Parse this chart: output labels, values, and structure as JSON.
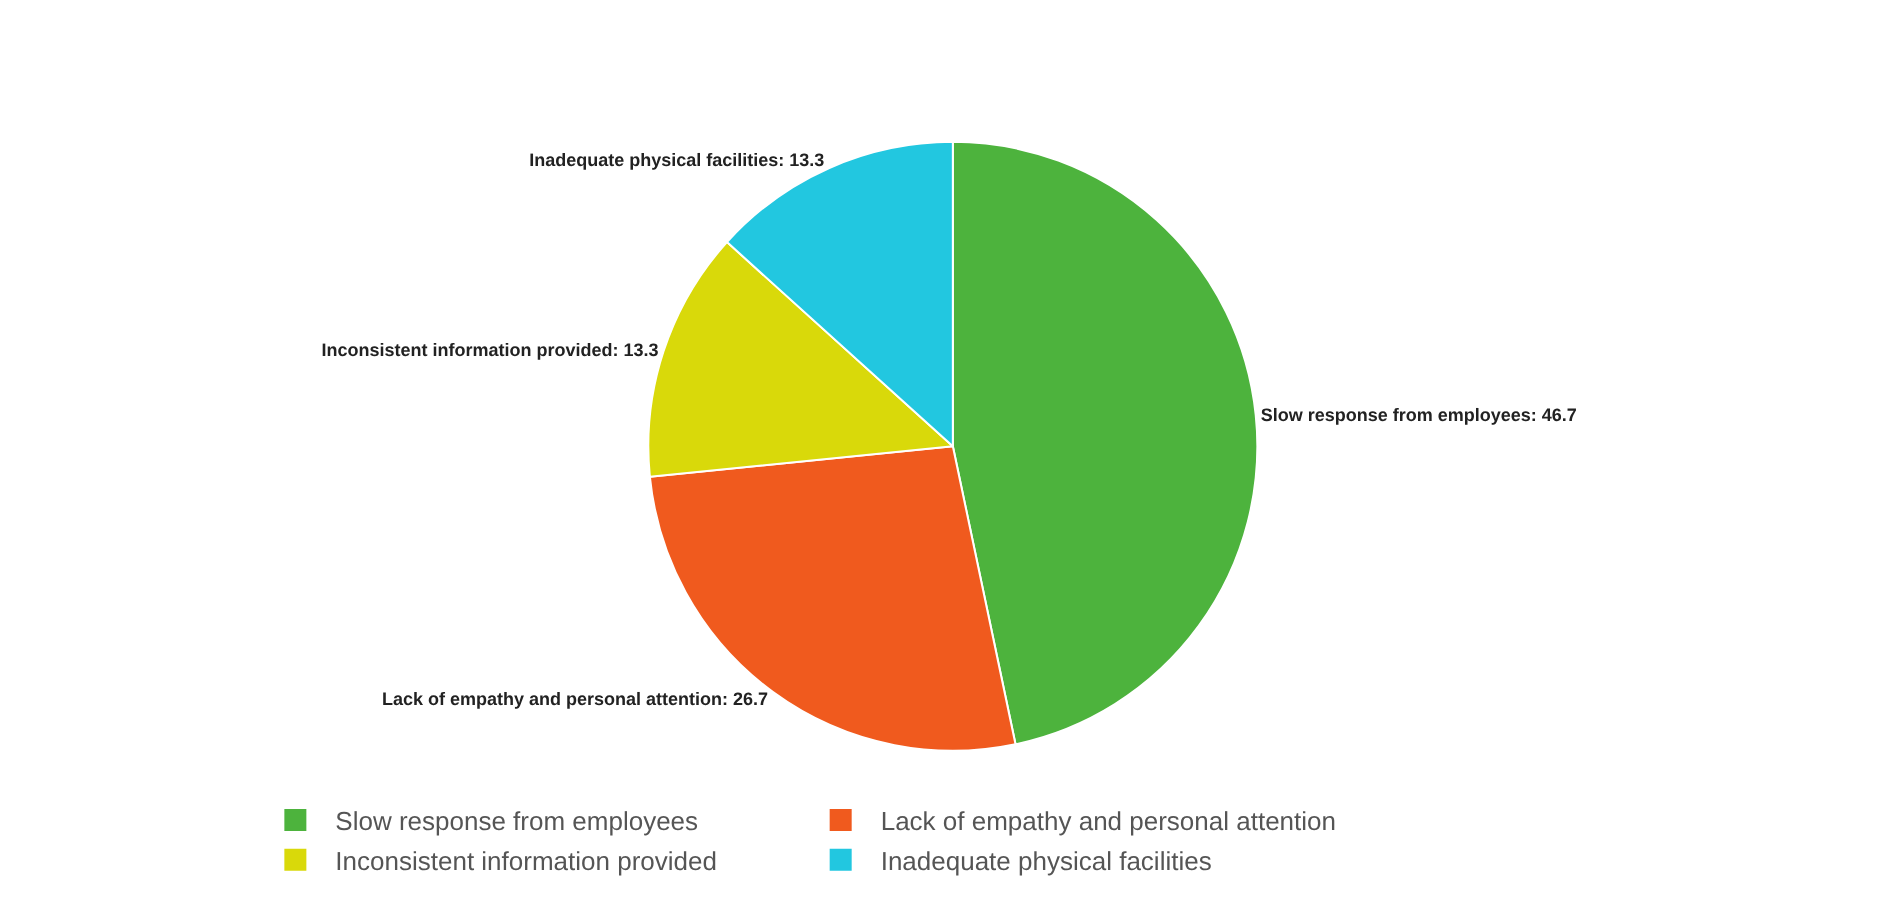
{
  "chart_data": {
    "type": "pie",
    "categories": [
      "Slow response from employees",
      "Lack of empathy and personal attention",
      "Inconsistent information provided",
      "Inadequate physical facilities"
    ],
    "values": [
      46.7,
      26.7,
      13.3,
      13.3
    ],
    "colors": [
      "#4db33d",
      "#f05a1e",
      "#d9d90a",
      "#22c7e0"
    ],
    "value_labels": [
      "Slow response from employees: 46.7",
      "Lack of empathy and personal attention: 26.7",
      "Inconsistent information provided: 13.3",
      "Inadequate physical facilities: 13.3"
    ],
    "legend": "bottom left"
  }
}
